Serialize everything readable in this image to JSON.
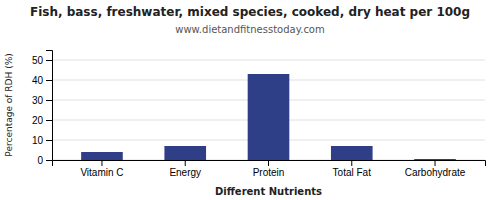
{
  "chart_data": {
    "type": "bar",
    "title": "Fish, bass, freshwater, mixed species, cooked, dry heat per 100g",
    "subtitle": "www.dietandfitnesstoday.com",
    "xlabel": "Different Nutrients",
    "ylabel": "Percentage of RDH (%)",
    "categories": [
      "Vitamin C",
      "Energy",
      "Protein",
      "Total Fat",
      "Carbohydrate"
    ],
    "values": [
      4.0,
      7.0,
      43.0,
      7.0,
      0.5
    ],
    "color": "#2e3f87",
    "ylim": [
      0,
      55
    ],
    "yticks": [
      0,
      10,
      20,
      30,
      40,
      50
    ],
    "grid": true
  }
}
